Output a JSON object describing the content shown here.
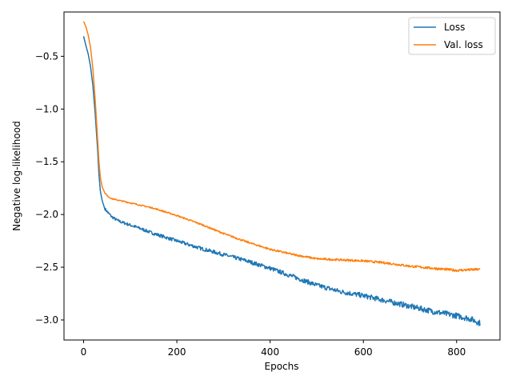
{
  "chart_data": {
    "type": "line",
    "xlabel": "Epochs",
    "ylabel": "Negative log-likelihood",
    "xlim": [
      -42,
      893
    ],
    "ylim": [
      -3.19,
      -0.08
    ],
    "xticks": [
      0,
      200,
      400,
      600,
      800
    ],
    "xtick_labels": [
      "0",
      "200",
      "400",
      "600",
      "800"
    ],
    "yticks": [
      -0.5,
      -1.0,
      -1.5,
      -2.0,
      -2.5,
      -3.0
    ],
    "ytick_labels": [
      "−0.5",
      "−1.0",
      "−1.5",
      "−2.0",
      "−2.5",
      "−3.0"
    ],
    "grid": false,
    "legend_position": "top-right",
    "series": [
      {
        "name": "Loss",
        "color": "#1f77b4",
        "points": [
          [
            0,
            -0.31
          ],
          [
            5,
            -0.4
          ],
          [
            10,
            -0.48
          ],
          [
            15,
            -0.6
          ],
          [
            20,
            -0.78
          ],
          [
            25,
            -1.05
          ],
          [
            30,
            -1.38
          ],
          [
            33,
            -1.62
          ],
          [
            36,
            -1.78
          ],
          [
            40,
            -1.87
          ],
          [
            45,
            -1.94
          ],
          [
            50,
            -1.97
          ],
          [
            60,
            -2.02
          ],
          [
            70,
            -2.05
          ],
          [
            80,
            -2.07
          ],
          [
            100,
            -2.1
          ],
          [
            120,
            -2.13
          ],
          [
            150,
            -2.18
          ],
          [
            200,
            -2.25
          ],
          [
            250,
            -2.32
          ],
          [
            300,
            -2.38
          ],
          [
            350,
            -2.44
          ],
          [
            400,
            -2.51
          ],
          [
            450,
            -2.59
          ],
          [
            500,
            -2.67
          ],
          [
            550,
            -2.73
          ],
          [
            600,
            -2.77
          ],
          [
            650,
            -2.82
          ],
          [
            700,
            -2.87
          ],
          [
            750,
            -2.92
          ],
          [
            800,
            -2.96
          ],
          [
            830,
            -2.99
          ],
          [
            850,
            -3.03
          ]
        ],
        "noise": 0.012
      },
      {
        "name": "Val. loss",
        "color": "#ff7f0e",
        "points": [
          [
            0,
            -0.17
          ],
          [
            5,
            -0.22
          ],
          [
            10,
            -0.3
          ],
          [
            15,
            -0.42
          ],
          [
            20,
            -0.62
          ],
          [
            25,
            -0.92
          ],
          [
            30,
            -1.28
          ],
          [
            33,
            -1.5
          ],
          [
            36,
            -1.65
          ],
          [
            40,
            -1.74
          ],
          [
            45,
            -1.79
          ],
          [
            50,
            -1.82
          ],
          [
            60,
            -1.85
          ],
          [
            80,
            -1.87
          ],
          [
            100,
            -1.89
          ],
          [
            150,
            -1.94
          ],
          [
            200,
            -2.01
          ],
          [
            250,
            -2.09
          ],
          [
            300,
            -2.18
          ],
          [
            350,
            -2.26
          ],
          [
            400,
            -2.33
          ],
          [
            450,
            -2.38
          ],
          [
            500,
            -2.42
          ],
          [
            550,
            -2.43
          ],
          [
            600,
            -2.44
          ],
          [
            650,
            -2.46
          ],
          [
            700,
            -2.49
          ],
          [
            750,
            -2.51
          ],
          [
            800,
            -2.53
          ],
          [
            850,
            -2.52
          ]
        ],
        "noise": 0.005
      }
    ]
  }
}
